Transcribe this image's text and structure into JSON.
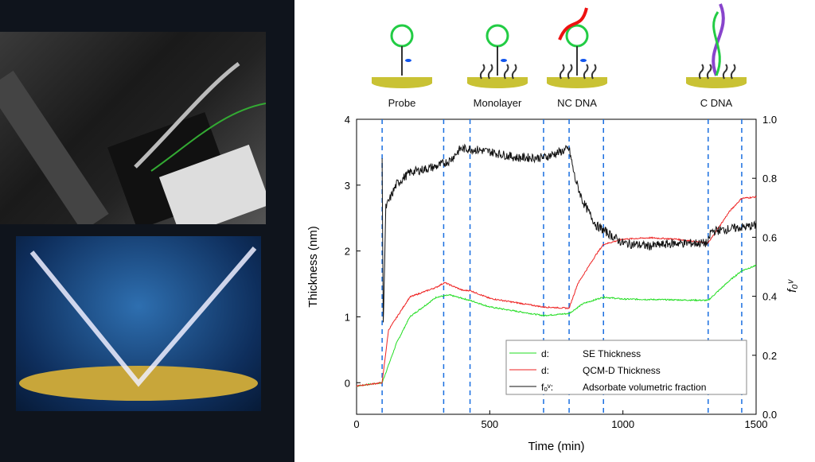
{
  "schematic_labels": [
    "Probe",
    "Monolayer",
    "NC DNA",
    "C DNA"
  ],
  "chart_data": {
    "type": "line",
    "xlabel": "Time (min)",
    "ylabel": "Thickness (nm)",
    "y2label": "f₀ᵛ",
    "xlim": [
      0,
      1500
    ],
    "ylim": [
      -0.48,
      4
    ],
    "y2lim": [
      0,
      1
    ],
    "xticks": [
      0,
      500,
      1000,
      1500
    ],
    "yticks": [
      0,
      1,
      2,
      3,
      4
    ],
    "y2ticks": [
      0.0,
      0.2,
      0.4,
      0.6,
      0.8,
      1.0
    ],
    "event_lines_x": [
      96,
      327,
      426,
      702,
      798,
      927,
      1320,
      1446
    ],
    "legend_position": "bottom-right",
    "series": [
      {
        "name": "d_SE",
        "label": "SE Thickness",
        "color": "#22dd22",
        "axis": "left",
        "x": [
          0,
          96,
          150,
          200,
          300,
          350,
          426,
          500,
          700,
          798,
          850,
          927,
          1000,
          1320,
          1400,
          1446,
          1500
        ],
        "y": [
          -0.05,
          0,
          0.6,
          1.0,
          1.3,
          1.33,
          1.25,
          1.15,
          1.02,
          1.05,
          1.2,
          1.3,
          1.27,
          1.25,
          1.55,
          1.7,
          1.78
        ]
      },
      {
        "name": "d_QCM",
        "label": "QCM-D Thickness",
        "color": "#ee2222",
        "axis": "left",
        "x": [
          0,
          96,
          120,
          200,
          300,
          330,
          400,
          426,
          500,
          700,
          798,
          830,
          900,
          927,
          1000,
          1100,
          1200,
          1320,
          1350,
          1400,
          1446,
          1500
        ],
        "y": [
          -0.05,
          0,
          0.8,
          1.3,
          1.45,
          1.52,
          1.4,
          1.4,
          1.28,
          1.15,
          1.13,
          1.5,
          1.95,
          2.1,
          2.18,
          2.2,
          2.18,
          2.12,
          2.3,
          2.6,
          2.8,
          2.82
        ]
      },
      {
        "name": "f_o^v",
        "label": "Adsorbate volumetric fraction",
        "color": "#111111",
        "axis": "right",
        "x": [
          96,
          100,
          110,
          150,
          200,
          300,
          350,
          390,
          426,
          500,
          600,
          702,
          798,
          820,
          850,
          900,
          1000,
          1100,
          1200,
          1320,
          1330,
          1500
        ],
        "y": [
          0.87,
          0.3,
          0.7,
          0.78,
          0.82,
          0.84,
          0.86,
          0.9,
          0.9,
          0.89,
          0.87,
          0.87,
          0.9,
          0.8,
          0.72,
          0.64,
          0.58,
          0.57,
          0.58,
          0.58,
          0.62,
          0.64
        ]
      }
    ]
  }
}
